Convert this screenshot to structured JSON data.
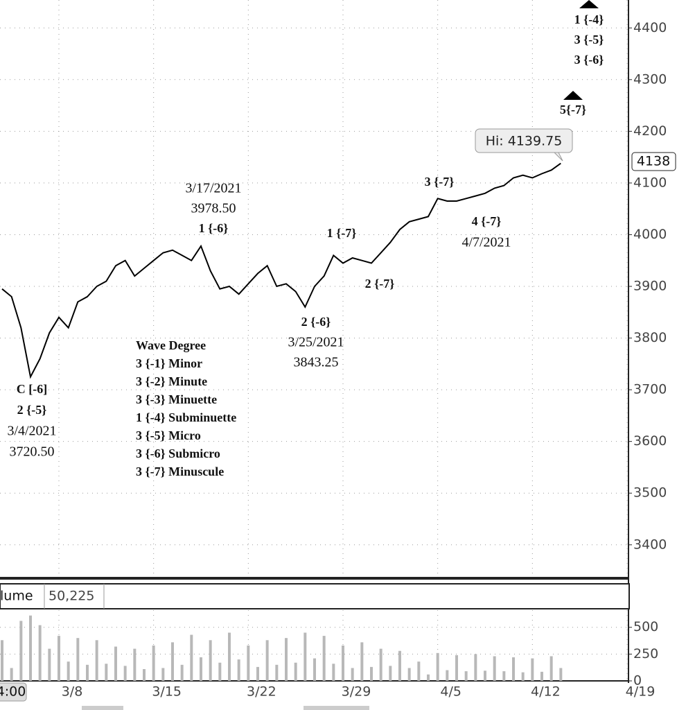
{
  "chart_data": [
    {
      "type": "line",
      "color": "#000000",
      "grid": true,
      "x": [
        null,
        null,
        null,
        null,
        null,
        null,
        "3/8",
        null,
        null,
        null,
        null,
        null,
        null,
        null,
        null,
        null,
        "3/15",
        null,
        null,
        null,
        null,
        null,
        null,
        null,
        null,
        null,
        "3/22",
        null,
        null,
        null,
        null,
        null,
        null,
        null,
        null,
        null,
        "3/29",
        null,
        null,
        null,
        null,
        null,
        null,
        null,
        null,
        null,
        "4/5",
        null,
        null,
        null,
        null,
        null,
        null,
        null,
        null,
        null,
        "4/12",
        null,
        null,
        null,
        null,
        null,
        null,
        null,
        null,
        null,
        "4/19"
      ],
      "values": [
        3895,
        3880,
        3820,
        3725,
        3760,
        3810,
        3840,
        3820,
        3870,
        3880,
        3900,
        3910,
        3940,
        3950,
        3920,
        3935,
        3950,
        3965,
        3970,
        3960,
        3950,
        3978,
        3930,
        3895,
        3900,
        3885,
        3905,
        3925,
        3940,
        3900,
        3905,
        3890,
        3860,
        3900,
        3920,
        3960,
        3945,
        3955,
        3950,
        3945,
        3965,
        3985,
        4010,
        4025,
        4030,
        4035,
        4070,
        4065,
        4065,
        4070,
        4075,
        4080,
        4090,
        4095,
        4110,
        4115,
        4110,
        4118,
        4125,
        4138,
        null,
        null,
        null,
        null,
        null,
        null,
        null
      ],
      "ylim": [
        3338,
        4454
      ],
      "yticks": [
        3400,
        3500,
        3600,
        3700,
        3800,
        3900,
        4000,
        4100,
        4200,
        4300,
        4400
      ],
      "last_price": 4138,
      "high_label": "Hi: 4139.75",
      "cursor_label": "4:00",
      "annotations": [
        {
          "lines": [
            "1 {-4}",
            "3 {-5}",
            "3 {-6}"
          ]
        },
        {
          "lines": [
            "5{-7}"
          ]
        },
        {
          "lines": [
            "3/17/2021",
            "3978.50",
            "1 {-6}"
          ]
        },
        {
          "lines": [
            "1 {-7}"
          ]
        },
        {
          "lines": [
            "3 {-7}"
          ]
        },
        {
          "lines": [
            "2 {-7}"
          ]
        },
        {
          "lines": [
            "4 {-7}",
            "4/7/2021"
          ]
        },
        {
          "lines": [
            "2 {-6}",
            "3/25/2021",
            "3843.25"
          ]
        },
        {
          "lines": [
            "C [-6]",
            "2 {-5}",
            "3/4/2021",
            "3720.50"
          ]
        }
      ],
      "legend": {
        "title": "Wave Degree",
        "items": [
          "3 {-1} Minor",
          "3 {-2} Minute",
          "3 {-3} Minuette",
          "1 {-4} Subminuette",
          "3 {-5} Micro",
          "3 {-6} Submicro",
          "3 {-7} Minuscule"
        ]
      }
    },
    {
      "type": "bar",
      "title": "lume",
      "value_label": "50,225",
      "color": "#b8b8b8",
      "grid": true,
      "values": [
        380,
        120,
        560,
        610,
        520,
        300,
        420,
        180,
        400,
        150,
        380,
        160,
        320,
        140,
        300,
        110,
        330,
        120,
        360,
        150,
        430,
        220,
        380,
        170,
        450,
        200,
        330,
        130,
        380,
        150,
        400,
        170,
        450,
        210,
        420,
        160,
        330,
        120,
        360,
        130,
        300,
        140,
        280,
        120,
        180,
        60,
        260,
        100,
        240,
        90,
        250,
        95,
        230,
        90,
        220,
        80,
        210,
        85,
        230,
        120,
        null,
        null,
        null,
        null,
        null,
        null,
        null
      ],
      "ylim": [
        0,
        660
      ],
      "yticks": [
        0,
        250,
        500
      ]
    }
  ]
}
